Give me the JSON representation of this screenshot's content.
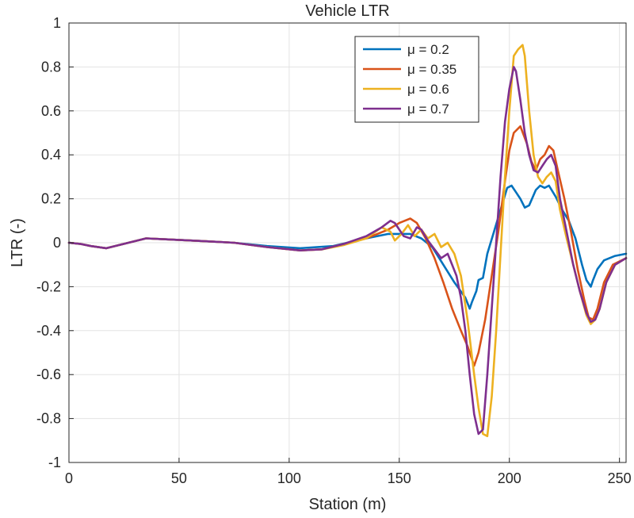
{
  "chart_data": {
    "type": "line",
    "title": "Vehicle LTR",
    "xlabel": "Station (m)",
    "ylabel": "LTR (-)",
    "xlim": [
      0,
      253
    ],
    "ylim": [
      -1,
      1
    ],
    "xticks": [
      0,
      50,
      100,
      150,
      200,
      250
    ],
    "yticks": [
      -1,
      -0.8,
      -0.6,
      -0.4,
      -0.2,
      0,
      0.2,
      0.4,
      0.6,
      0.8,
      1
    ],
    "xtick_labels": [
      "0",
      "50",
      "100",
      "150",
      "200",
      "250"
    ],
    "ytick_labels": [
      "-1",
      "-0.8",
      "-0.6",
      "-0.4",
      "-0.2",
      "0",
      "0.2",
      "0.4",
      "0.6",
      "0.8",
      "1"
    ],
    "grid": true,
    "legend_position": "top-right",
    "series": [
      {
        "name": "μ = 0.2",
        "color": "#0072BD",
        "points": [
          [
            0,
            0
          ],
          [
            5,
            -0.005
          ],
          [
            10,
            -0.015
          ],
          [
            17,
            -0.025
          ],
          [
            25,
            -0.005
          ],
          [
            35,
            0.02
          ],
          [
            45,
            0.015
          ],
          [
            60,
            0.008
          ],
          [
            75,
            0
          ],
          [
            90,
            -0.015
          ],
          [
            105,
            -0.025
          ],
          [
            120,
            -0.015
          ],
          [
            135,
            0.02
          ],
          [
            145,
            0.04
          ],
          [
            155,
            0.04
          ],
          [
            160,
            0.02
          ],
          [
            165,
            -0.02
          ],
          [
            170,
            -0.1
          ],
          [
            175,
            -0.18
          ],
          [
            180,
            -0.25
          ],
          [
            182,
            -0.3
          ],
          [
            183,
            -0.27
          ],
          [
            185,
            -0.22
          ],
          [
            186,
            -0.17
          ],
          [
            188,
            -0.16
          ],
          [
            190,
            -0.05
          ],
          [
            193,
            0.05
          ],
          [
            196,
            0.15
          ],
          [
            199,
            0.25
          ],
          [
            201,
            0.26
          ],
          [
            203,
            0.23
          ],
          [
            205,
            0.2
          ],
          [
            207,
            0.16
          ],
          [
            209,
            0.17
          ],
          [
            212,
            0.24
          ],
          [
            214,
            0.26
          ],
          [
            216,
            0.25
          ],
          [
            218,
            0.26
          ],
          [
            221,
            0.21
          ],
          [
            224,
            0.15
          ],
          [
            227,
            0.1
          ],
          [
            230,
            0.02
          ],
          [
            233,
            -0.1
          ],
          [
            235,
            -0.17
          ],
          [
            237,
            -0.2
          ],
          [
            238,
            -0.17
          ],
          [
            240,
            -0.12
          ],
          [
            243,
            -0.08
          ],
          [
            248,
            -0.06
          ],
          [
            253,
            -0.05
          ]
        ]
      },
      {
        "name": "μ = 0.35",
        "color": "#D95319",
        "points": [
          [
            0,
            0
          ],
          [
            5,
            -0.005
          ],
          [
            10,
            -0.015
          ],
          [
            17,
            -0.025
          ],
          [
            25,
            -0.005
          ],
          [
            35,
            0.02
          ],
          [
            45,
            0.015
          ],
          [
            60,
            0.008
          ],
          [
            75,
            0
          ],
          [
            90,
            -0.02
          ],
          [
            105,
            -0.035
          ],
          [
            115,
            -0.03
          ],
          [
            125,
            -0.005
          ],
          [
            135,
            0.02
          ],
          [
            145,
            0.06
          ],
          [
            150,
            0.09
          ],
          [
            155,
            0.11
          ],
          [
            158,
            0.09
          ],
          [
            162,
            0.02
          ],
          [
            166,
            -0.07
          ],
          [
            170,
            -0.18
          ],
          [
            174,
            -0.3
          ],
          [
            178,
            -0.4
          ],
          [
            181,
            -0.47
          ],
          [
            184,
            -0.56
          ],
          [
            186,
            -0.5
          ],
          [
            189,
            -0.35
          ],
          [
            192,
            -0.15
          ],
          [
            195,
            0.05
          ],
          [
            198,
            0.28
          ],
          [
            200,
            0.42
          ],
          [
            202,
            0.5
          ],
          [
            205,
            0.53
          ],
          [
            208,
            0.45
          ],
          [
            210,
            0.37
          ],
          [
            212,
            0.33
          ],
          [
            214,
            0.38
          ],
          [
            216,
            0.4
          ],
          [
            218,
            0.44
          ],
          [
            220,
            0.42
          ],
          [
            222,
            0.33
          ],
          [
            225,
            0.2
          ],
          [
            228,
            0.05
          ],
          [
            231,
            -0.12
          ],
          [
            234,
            -0.26
          ],
          [
            236,
            -0.34
          ],
          [
            238,
            -0.35
          ],
          [
            240,
            -0.3
          ],
          [
            243,
            -0.18
          ],
          [
            247,
            -0.1
          ],
          [
            253,
            -0.07
          ]
        ]
      },
      {
        "name": "μ = 0.6",
        "color": "#EDB120",
        "points": [
          [
            0,
            0
          ],
          [
            5,
            -0.005
          ],
          [
            10,
            -0.015
          ],
          [
            17,
            -0.025
          ],
          [
            25,
            -0.005
          ],
          [
            35,
            0.02
          ],
          [
            45,
            0.015
          ],
          [
            60,
            0.008
          ],
          [
            75,
            0
          ],
          [
            90,
            -0.02
          ],
          [
            105,
            -0.035
          ],
          [
            115,
            -0.03
          ],
          [
            125,
            -0.01
          ],
          [
            135,
            0.02
          ],
          [
            142,
            0.07
          ],
          [
            146,
            0.05
          ],
          [
            148,
            0.01
          ],
          [
            151,
            0.04
          ],
          [
            154,
            0.08
          ],
          [
            157,
            0.03
          ],
          [
            160,
            0.06
          ],
          [
            163,
            0.02
          ],
          [
            166,
            0.04
          ],
          [
            169,
            -0.02
          ],
          [
            172,
            0
          ],
          [
            175,
            -0.05
          ],
          [
            178,
            -0.15
          ],
          [
            181,
            -0.35
          ],
          [
            184,
            -0.6
          ],
          [
            186,
            -0.75
          ],
          [
            188,
            -0.87
          ],
          [
            190,
            -0.88
          ],
          [
            192,
            -0.7
          ],
          [
            194,
            -0.4
          ],
          [
            196,
            -0.05
          ],
          [
            198,
            0.3
          ],
          [
            200,
            0.6
          ],
          [
            202,
            0.85
          ],
          [
            204,
            0.88
          ],
          [
            206,
            0.9
          ],
          [
            207,
            0.85
          ],
          [
            209,
            0.6
          ],
          [
            211,
            0.4
          ],
          [
            213,
            0.3
          ],
          [
            215,
            0.27
          ],
          [
            217,
            0.3
          ],
          [
            219,
            0.32
          ],
          [
            221,
            0.28
          ],
          [
            223,
            0.15
          ],
          [
            226,
            0.02
          ],
          [
            229,
            -0.1
          ],
          [
            232,
            -0.22
          ],
          [
            235,
            -0.33
          ],
          [
            237,
            -0.37
          ],
          [
            239,
            -0.35
          ],
          [
            241,
            -0.3
          ],
          [
            244,
            -0.18
          ],
          [
            248,
            -0.1
          ],
          [
            253,
            -0.07
          ]
        ]
      },
      {
        "name": "μ = 0.7",
        "color": "#7E2F8E",
        "points": [
          [
            0,
            0
          ],
          [
            5,
            -0.005
          ],
          [
            10,
            -0.015
          ],
          [
            17,
            -0.025
          ],
          [
            25,
            -0.005
          ],
          [
            35,
            0.02
          ],
          [
            45,
            0.015
          ],
          [
            60,
            0.008
          ],
          [
            75,
            0
          ],
          [
            90,
            -0.02
          ],
          [
            105,
            -0.035
          ],
          [
            115,
            -0.03
          ],
          [
            125,
            -0.005
          ],
          [
            135,
            0.03
          ],
          [
            142,
            0.07
          ],
          [
            146,
            0.1
          ],
          [
            148,
            0.09
          ],
          [
            150,
            0.06
          ],
          [
            152,
            0.03
          ],
          [
            155,
            0.02
          ],
          [
            158,
            0.07
          ],
          [
            160,
            0.06
          ],
          [
            163,
            0.01
          ],
          [
            166,
            -0.03
          ],
          [
            169,
            -0.07
          ],
          [
            172,
            -0.05
          ],
          [
            174,
            -0.1
          ],
          [
            176,
            -0.15
          ],
          [
            178,
            -0.25
          ],
          [
            180,
            -0.4
          ],
          [
            182,
            -0.6
          ],
          [
            184,
            -0.78
          ],
          [
            186,
            -0.87
          ],
          [
            188,
            -0.85
          ],
          [
            190,
            -0.6
          ],
          [
            192,
            -0.3
          ],
          [
            194,
            0
          ],
          [
            196,
            0.3
          ],
          [
            198,
            0.55
          ],
          [
            200,
            0.7
          ],
          [
            202,
            0.8
          ],
          [
            203,
            0.78
          ],
          [
            205,
            0.65
          ],
          [
            207,
            0.5
          ],
          [
            209,
            0.4
          ],
          [
            211,
            0.33
          ],
          [
            213,
            0.32
          ],
          [
            215,
            0.35
          ],
          [
            217,
            0.38
          ],
          [
            219,
            0.4
          ],
          [
            221,
            0.35
          ],
          [
            223,
            0.2
          ],
          [
            226,
            0.05
          ],
          [
            229,
            -0.1
          ],
          [
            232,
            -0.22
          ],
          [
            235,
            -0.32
          ],
          [
            237,
            -0.36
          ],
          [
            239,
            -0.35
          ],
          [
            241,
            -0.3
          ],
          [
            244,
            -0.18
          ],
          [
            248,
            -0.1
          ],
          [
            253,
            -0.07
          ]
        ]
      }
    ]
  }
}
